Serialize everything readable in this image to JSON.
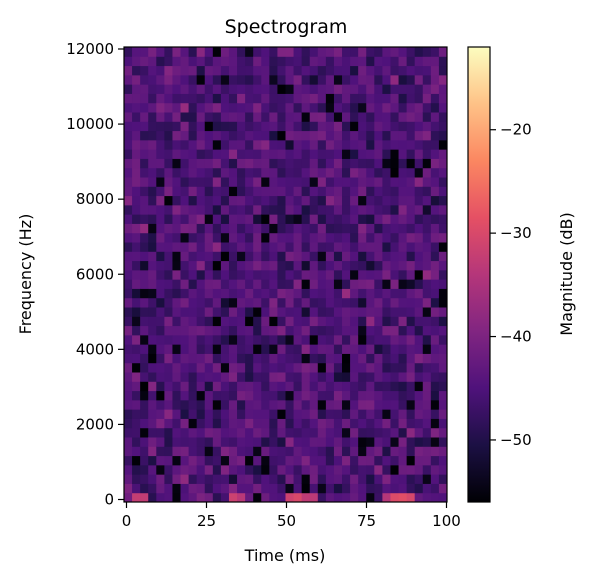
{
  "chart_data": {
    "type": "heatmap",
    "title": "Spectrogram",
    "xlabel": "Time (ms)",
    "ylabel": "Frequency (Hz)",
    "colorbar_label": "Magnitude (dB)",
    "colormap": "magma",
    "xlim": [
      0,
      100
    ],
    "ylim": [
      0,
      12000
    ],
    "clim": [
      -56,
      -12
    ],
    "x_ticks": [
      0,
      25,
      50,
      75,
      100
    ],
    "x_tick_labels": [
      "0",
      "25",
      "50",
      "75",
      "100"
    ],
    "y_ticks": [
      0,
      2000,
      4000,
      6000,
      8000,
      10000,
      12000
    ],
    "y_tick_labels": [
      "0",
      "2000",
      "4000",
      "6000",
      "8000",
      "10000",
      "12000"
    ],
    "colorbar_ticks": [
      -50,
      -40,
      -30,
      -20
    ],
    "colorbar_tick_labels": [
      "−50",
      "−40",
      "−30",
      "−20"
    ],
    "grid": false,
    "time_bins": 40,
    "freq_bins": 49,
    "time_bin_width_ms": 2.5,
    "freq_bin_width_hz": 250,
    "magnitude_levels_db": {
      "noise_floor_mean": -45,
      "noise_floor_min": -56,
      "low_band_peak_max": -28,
      "low_band_peak_times_ms": [
        5,
        35,
        53,
        57,
        82,
        87
      ],
      "low_band_peak_frequency_hz": 0
    }
  }
}
